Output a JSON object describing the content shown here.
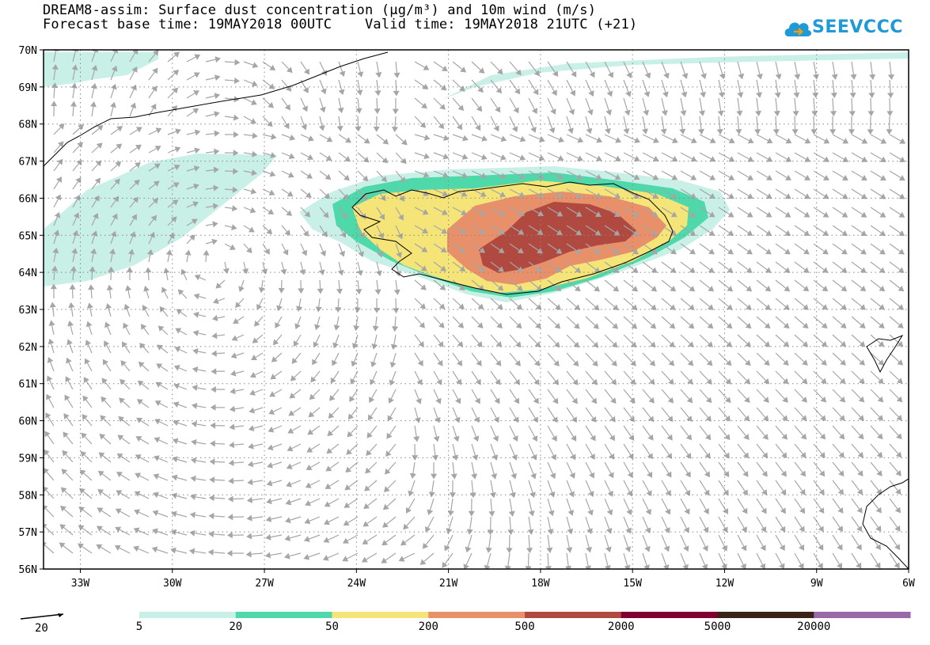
{
  "header": {
    "title_line1": "DREAM8-assim: Surface dust concentration (µg/m³) and 10m wind (m/s)",
    "title_line2": "Forecast base time: 19MAY2018 00UTC    Valid time: 19MAY2018 21UTC (+21)"
  },
  "logo": {
    "text": "SEEVCCC",
    "icon": "cloud-icon",
    "color": "#1e9ad6"
  },
  "axes": {
    "lat_labels": [
      "70N",
      "69N",
      "68N",
      "67N",
      "66N",
      "65N",
      "64N",
      "63N",
      "62N",
      "61N",
      "60N",
      "59N",
      "58N",
      "57N",
      "56N"
    ],
    "lon_labels": [
      "33W",
      "30W",
      "27W",
      "24W",
      "21W",
      "18W",
      "15W",
      "12W",
      "9W",
      "6W"
    ],
    "lat_range": [
      56,
      70
    ],
    "lon_range": [
      -34.2,
      -6
    ]
  },
  "colorbar": {
    "labels": [
      "5",
      "20",
      "50",
      "200",
      "500",
      "2000",
      "5000",
      "20000"
    ],
    "colors": [
      "#c8f0e6",
      "#4fd8aa",
      "#f5e478",
      "#e8906a",
      "#b04a40",
      "#800030",
      "#3a2418",
      "#9a6aa8"
    ]
  },
  "wind_reference": {
    "value": "20"
  },
  "map": {
    "gridline_color": "#888888",
    "arrow_color": "#a6a6a6",
    "coast_color": "#000000"
  }
}
